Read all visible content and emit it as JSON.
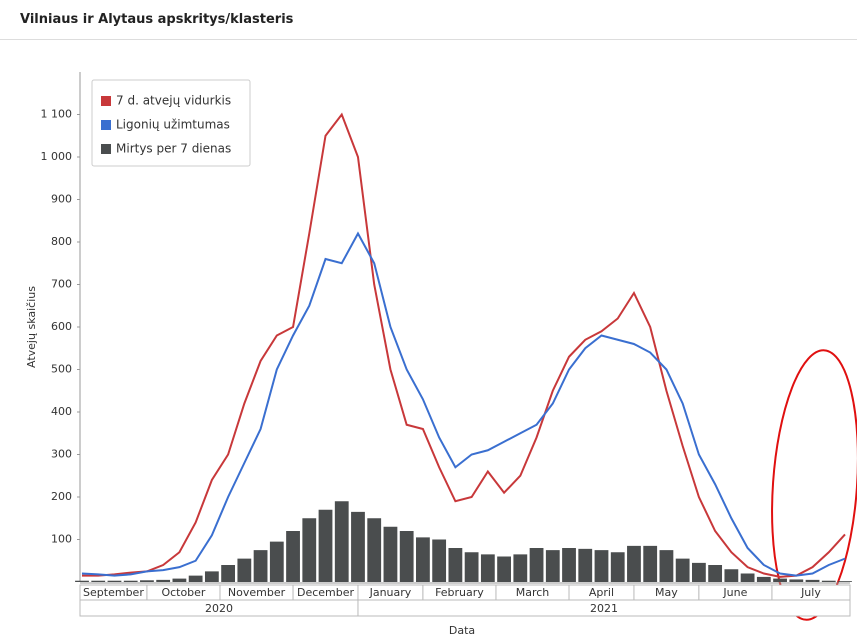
{
  "chart_data": {
    "type": "line",
    "title": "Vilniaus ir Alytaus apskritys/klasteris",
    "ylabel": "Atvejų skaičius",
    "xlabel": "Data",
    "categories": [
      null,
      null,
      "September",
      null,
      null,
      null,
      "October",
      null,
      null,
      null,
      null,
      "November",
      null,
      null,
      null,
      "December",
      null,
      null,
      null,
      "January",
      null,
      null,
      null,
      "February",
      null,
      null,
      null,
      null,
      "March",
      null,
      null,
      null,
      "April",
      null,
      null,
      null,
      "May",
      null,
      null,
      null,
      "June",
      null,
      null,
      null,
      null,
      "July",
      null,
      null
    ],
    "years": [
      "2020",
      "2021"
    ],
    "series": [
      {
        "name": "7 d. atvejų vidurkis",
        "color": "#c8383a",
        "kind": "line",
        "values": [
          15,
          15,
          18,
          22,
          25,
          40,
          70,
          140,
          240,
          300,
          420,
          520,
          580,
          600,
          820,
          1050,
          1100,
          1000,
          700,
          500,
          370,
          360,
          270,
          190,
          200,
          260,
          210,
          250,
          340,
          450,
          530,
          570,
          590,
          620,
          680,
          600,
          450,
          320,
          200,
          120,
          70,
          35,
          20,
          12,
          15,
          35,
          70,
          112
        ]
      },
      {
        "name": "Ligonių užimtumas",
        "color": "#3a6fd0",
        "kind": "line",
        "values": [
          20,
          18,
          15,
          18,
          25,
          28,
          35,
          50,
          110,
          200,
          280,
          360,
          500,
          580,
          650,
          760,
          750,
          820,
          750,
          600,
          500,
          430,
          340,
          270,
          300,
          310,
          330,
          350,
          370,
          420,
          500,
          550,
          580,
          570,
          560,
          540,
          500,
          420,
          300,
          230,
          150,
          80,
          40,
          20,
          15,
          20,
          40,
          55
        ]
      },
      {
        "name": "Mirtys per 7 dienas",
        "color": "#4a4d4e",
        "kind": "bar",
        "values": [
          3,
          3,
          3,
          3,
          4,
          5,
          8,
          15,
          25,
          40,
          55,
          75,
          95,
          120,
          150,
          170,
          190,
          165,
          150,
          130,
          120,
          105,
          100,
          80,
          70,
          65,
          60,
          65,
          80,
          75,
          80,
          78,
          75,
          70,
          85,
          85,
          75,
          55,
          45,
          40,
          30,
          20,
          12,
          8,
          6,
          5,
          3,
          2
        ]
      }
    ],
    "ylim": [
      0,
      1200
    ],
    "yticks": [
      100,
      200,
      300,
      400,
      500,
      600,
      700,
      800,
      900,
      {
        "value": 1000,
        "label": "1 000"
      },
      {
        "value": 1100,
        "label": "1 100"
      }
    ],
    "grid": false,
    "legend": "top-left"
  }
}
